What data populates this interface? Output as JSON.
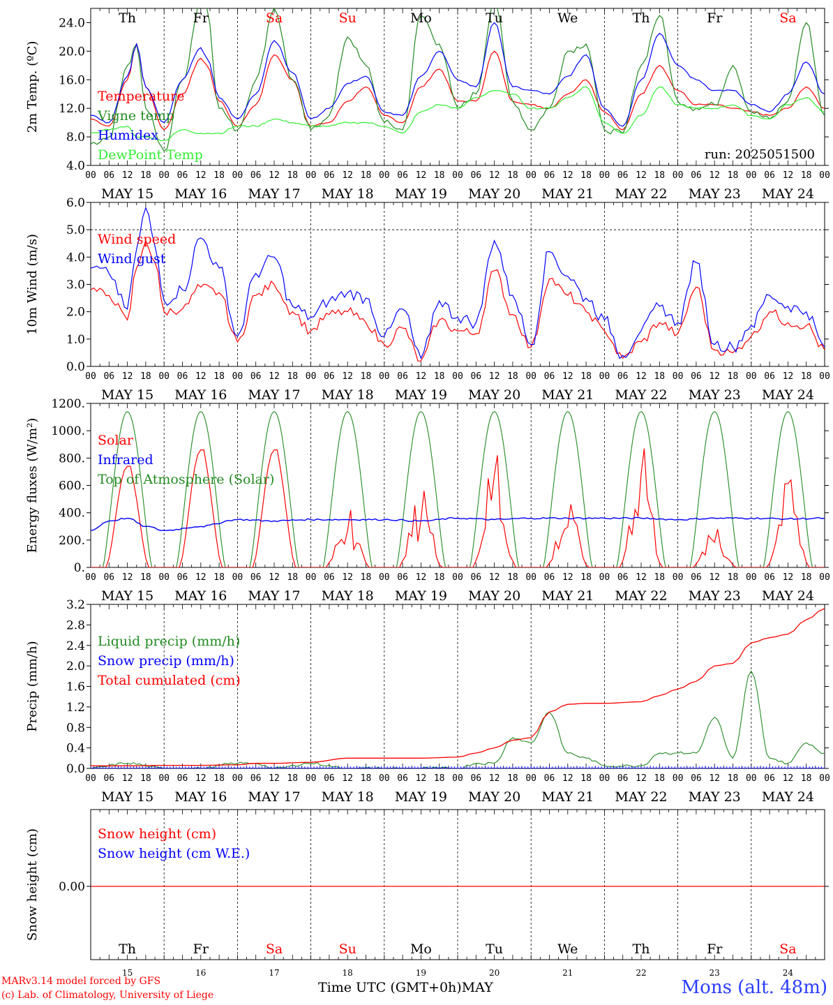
{
  "colors": {
    "red": "#ff0000",
    "green": "#228b22",
    "blue": "#0000ff",
    "lightgreen": "#33ee33",
    "axis": "#000000",
    "grid": "#000000",
    "weekend": "#ff0000",
    "station": "#2a3cff"
  },
  "days": {
    "names": [
      "Th",
      "Fr",
      "Sa",
      "Su",
      "Mo",
      "Tu",
      "We",
      "Th",
      "Fr",
      "Sa"
    ],
    "weekend": [
      false,
      false,
      true,
      true,
      false,
      false,
      false,
      false,
      false,
      true
    ],
    "dates": [
      "MAY 15",
      "MAY 16",
      "MAY 17",
      "MAY 18",
      "MAY 19",
      "MAY 20",
      "MAY 21",
      "MAY 22",
      "MAY 23",
      "MAY 24"
    ],
    "numbers": [
      "15",
      "16",
      "17",
      "18",
      "19",
      "20",
      "21",
      "22",
      "23",
      "24"
    ],
    "hour_ticks": [
      "00",
      "06",
      "12",
      "18"
    ]
  },
  "footer": {
    "xlabel": "Time UTC (GMT+0h)",
    "month": "MAY",
    "credit1": "MARv3.14 model forced by GFS",
    "credit2": "(c) Lab. of Climatology, University of Liege",
    "station": "Mons (alt. 48m)"
  },
  "chart_data": [
    {
      "type": "line",
      "ylabel": "2m Temp. (ºC)",
      "ylim": [
        4,
        26
      ],
      "yticks": [
        "4.0",
        "8.0",
        "12.0",
        "16.0",
        "20.0",
        "24.0"
      ],
      "ytick_values": [
        4,
        8,
        12,
        16,
        20,
        24
      ],
      "grid": "dashed vertical day separators",
      "legend_placement": "left",
      "annotation": "run: 2025051500",
      "x_hours": [
        0,
        6,
        12,
        15,
        18,
        24,
        30,
        36,
        38,
        42,
        48,
        54,
        60,
        66,
        72,
        78,
        84,
        90,
        96,
        102,
        108,
        114,
        120,
        126,
        132,
        138,
        144,
        150,
        156,
        162,
        168,
        174,
        180,
        186,
        192,
        198,
        204,
        210,
        216,
        222,
        228,
        234,
        240
      ],
      "series": [
        {
          "name": "Temperature",
          "color": "#ff0000",
          "values": [
            10.5,
            9.5,
            16.0,
            21.0,
            15.0,
            9.0,
            14.0,
            19.0,
            18.0,
            13.0,
            9.5,
            12.5,
            19.5,
            16.0,
            9.5,
            10.0,
            13.0,
            15.0,
            11.0,
            10.0,
            15.0,
            17.5,
            13.0,
            13.0,
            20.0,
            13.0,
            12.5,
            12.0,
            14.0,
            16.0,
            11.5,
            9.0,
            14.0,
            18.0,
            14.5,
            12.5,
            12.5,
            12.0,
            11.5,
            11.0,
            12.0,
            15.0,
            12.0
          ]
        },
        {
          "name": "Vigne temp",
          "color": "#228b22",
          "values": [
            7.0,
            8.0,
            18.0,
            21.0,
            12.0,
            6.0,
            16.0,
            27.0,
            26.0,
            12.0,
            9.0,
            16.0,
            26.0,
            16.0,
            9.0,
            11.0,
            22.0,
            18.0,
            10.0,
            9.0,
            25.0,
            21.0,
            12.0,
            14.0,
            27.0,
            13.0,
            9.0,
            12.0,
            20.0,
            21.0,
            9.0,
            8.5,
            18.0,
            25.0,
            13.0,
            12.0,
            12.5,
            18.0,
            11.5,
            10.5,
            13.0,
            24.0,
            11.0
          ]
        },
        {
          "name": "Humidex",
          "color": "#0000ff",
          "values": [
            11.0,
            10.0,
            16.5,
            21.0,
            15.0,
            10.0,
            16.0,
            20.5,
            19.0,
            13.5,
            10.5,
            14.0,
            21.5,
            17.0,
            10.5,
            12.0,
            15.5,
            16.5,
            11.5,
            11.0,
            16.5,
            20.0,
            16.0,
            15.0,
            24.0,
            15.0,
            14.5,
            14.0,
            16.5,
            19.5,
            12.0,
            9.5,
            16.0,
            22.5,
            18.0,
            16.0,
            14.5,
            14.5,
            12.5,
            11.5,
            14.0,
            18.5,
            14.0
          ]
        },
        {
          "name": "DewPoint Temp",
          "color": "#33ee33",
          "values": [
            8.5,
            9.0,
            9.5,
            8.0,
            8.0,
            7.5,
            9.0,
            8.5,
            8.5,
            8.5,
            9.5,
            9.5,
            10.5,
            10.0,
            9.5,
            9.5,
            10.0,
            10.0,
            9.5,
            8.5,
            11.5,
            12.5,
            12.0,
            13.5,
            14.5,
            14.0,
            12.0,
            12.0,
            13.5,
            15.0,
            10.0,
            8.5,
            11.0,
            15.0,
            12.5,
            12.0,
            12.0,
            12.5,
            11.0,
            10.5,
            12.5,
            13.5,
            11.5
          ]
        }
      ]
    },
    {
      "type": "line",
      "ylabel": "10m Wind (m/s)",
      "ylim": [
        0,
        6
      ],
      "yticks": [
        "0.0",
        "1.0",
        "2.0",
        "3.0",
        "4.0",
        "5.0",
        "6.0"
      ],
      "ytick_values": [
        0,
        1,
        2,
        3,
        4,
        5,
        6
      ],
      "ref_line": 5,
      "legend_placement": "left",
      "x_hours": [
        0,
        6,
        12,
        15,
        18,
        21,
        24,
        30,
        36,
        42,
        48,
        54,
        60,
        66,
        72,
        78,
        84,
        90,
        96,
        102,
        108,
        114,
        120,
        126,
        132,
        138,
        144,
        150,
        156,
        162,
        168,
        174,
        180,
        186,
        192,
        198,
        204,
        210,
        216,
        222,
        228,
        234,
        240
      ],
      "series": [
        {
          "name": "Wind speed",
          "color": "#ff0000",
          "values": [
            2.8,
            2.6,
            1.7,
            3.6,
            4.6,
            3.8,
            2.0,
            2.1,
            2.9,
            2.7,
            0.9,
            2.6,
            3.0,
            2.0,
            1.3,
            1.9,
            2.0,
            1.6,
            0.8,
            1.4,
            0.2,
            1.7,
            1.3,
            1.2,
            3.5,
            1.9,
            0.7,
            3.2,
            2.6,
            2.0,
            1.3,
            0.3,
            0.9,
            1.6,
            1.2,
            2.9,
            0.6,
            0.5,
            1.1,
            2.0,
            1.6,
            1.5,
            0.6
          ]
        },
        {
          "name": "Wind gust",
          "color": "#0000ff",
          "values": [
            3.6,
            3.4,
            2.1,
            4.3,
            5.8,
            4.4,
            2.4,
            2.8,
            4.7,
            3.6,
            1.1,
            3.4,
            4.0,
            2.2,
            1.8,
            2.4,
            2.7,
            2.5,
            1.1,
            2.1,
            0.3,
            2.4,
            1.8,
            1.6,
            4.6,
            2.6,
            0.8,
            4.2,
            3.3,
            2.5,
            1.7,
            0.4,
            1.3,
            2.2,
            1.6,
            3.8,
            0.8,
            0.7,
            1.5,
            2.6,
            2.2,
            2.0,
            0.7
          ]
        }
      ]
    },
    {
      "type": "line",
      "ylabel": "Energy fluxes (W/m²)",
      "ylim": [
        0,
        1200
      ],
      "yticks": [
        "0.",
        "200.",
        "400.",
        "600.",
        "800.",
        "1000.",
        "1200."
      ],
      "ytick_values": [
        0,
        200,
        400,
        600,
        800,
        1000,
        1200
      ],
      "legend_placement": "left",
      "series": [
        {
          "name": "Solar",
          "color": "#ff0000",
          "daily_peaks": [
            740,
            860,
            860,
            420,
            560,
            820,
            460,
            870,
            280,
            640
          ]
        },
        {
          "name": "Infrared",
          "color": "#0000ff",
          "x_hours": [
            0,
            6,
            12,
            18,
            24,
            36,
            48,
            60,
            72,
            84,
            96,
            108,
            120,
            132,
            144,
            156,
            168,
            180,
            192,
            204,
            216,
            228,
            240
          ],
          "values": [
            270,
            340,
            360,
            300,
            270,
            300,
            350,
            340,
            350,
            350,
            350,
            340,
            360,
            350,
            360,
            360,
            360,
            360,
            350,
            360,
            360,
            355,
            360
          ]
        },
        {
          "name": "Top of Atmosphere (Solar)",
          "color": "#228b22",
          "daily_peak": 1140
        }
      ]
    },
    {
      "type": "line",
      "ylabel": "Precip (mm/h)",
      "ylim": [
        0,
        3.2
      ],
      "yticks": [
        "0.0",
        "0.4",
        "0.8",
        "1.2",
        "1.6",
        "2.0",
        "2.4",
        "2.8",
        "3.2"
      ],
      "ytick_values": [
        0,
        0.4,
        0.8,
        1.2,
        1.6,
        2.0,
        2.4,
        2.8,
        3.2
      ],
      "legend_placement": "left",
      "x_hours": [
        0,
        12,
        24,
        36,
        48,
        54,
        60,
        72,
        84,
        96,
        108,
        120,
        126,
        132,
        138,
        144,
        150,
        156,
        162,
        168,
        180,
        186,
        192,
        198,
        204,
        210,
        216,
        222,
        228,
        234,
        240
      ],
      "series": [
        {
          "name": "Liquid precip (mm/h)",
          "color": "#228b22",
          "values": [
            0,
            0.1,
            0,
            0,
            0.1,
            0.1,
            0,
            0.1,
            0,
            0,
            0,
            0,
            0.1,
            0.1,
            0.6,
            0.5,
            1.1,
            0.3,
            0.2,
            0.05,
            0.05,
            0.3,
            0.3,
            0.3,
            1.0,
            0.2,
            1.9,
            0.2,
            0.1,
            0.5,
            0.3
          ]
        },
        {
          "name": "Snow precip (mm/h)",
          "color": "#0000ff",
          "values": [
            0,
            0,
            0,
            0,
            0,
            0,
            0,
            0,
            0,
            0,
            0,
            0,
            0,
            0,
            0,
            0,
            0,
            0,
            0,
            0,
            0,
            0,
            0,
            0,
            0,
            0,
            0,
            0,
            0,
            0,
            0
          ]
        },
        {
          "name": "Total cumulated (cm)",
          "color": "#ff0000",
          "values": [
            0.05,
            0.05,
            0.06,
            0.06,
            0.07,
            0.1,
            0.1,
            0.12,
            0.2,
            0.2,
            0.2,
            0.22,
            0.3,
            0.4,
            0.55,
            0.6,
            1.1,
            1.25,
            1.27,
            1.27,
            1.3,
            1.42,
            1.55,
            1.7,
            2.0,
            2.05,
            2.45,
            2.55,
            2.62,
            2.9,
            3.12
          ]
        }
      ]
    },
    {
      "type": "line",
      "ylabel": "Snow height (cm)",
      "yticks": [
        "0.00"
      ],
      "ytick_values": [
        0
      ],
      "legend_placement": "left",
      "series": [
        {
          "name": "Snow height (cm)",
          "color": "#ff0000",
          "values": [
            0,
            0
          ]
        },
        {
          "name": "Snow height (cm W.E.)",
          "color": "#0000ff",
          "values": [
            0,
            0
          ]
        }
      ]
    }
  ]
}
